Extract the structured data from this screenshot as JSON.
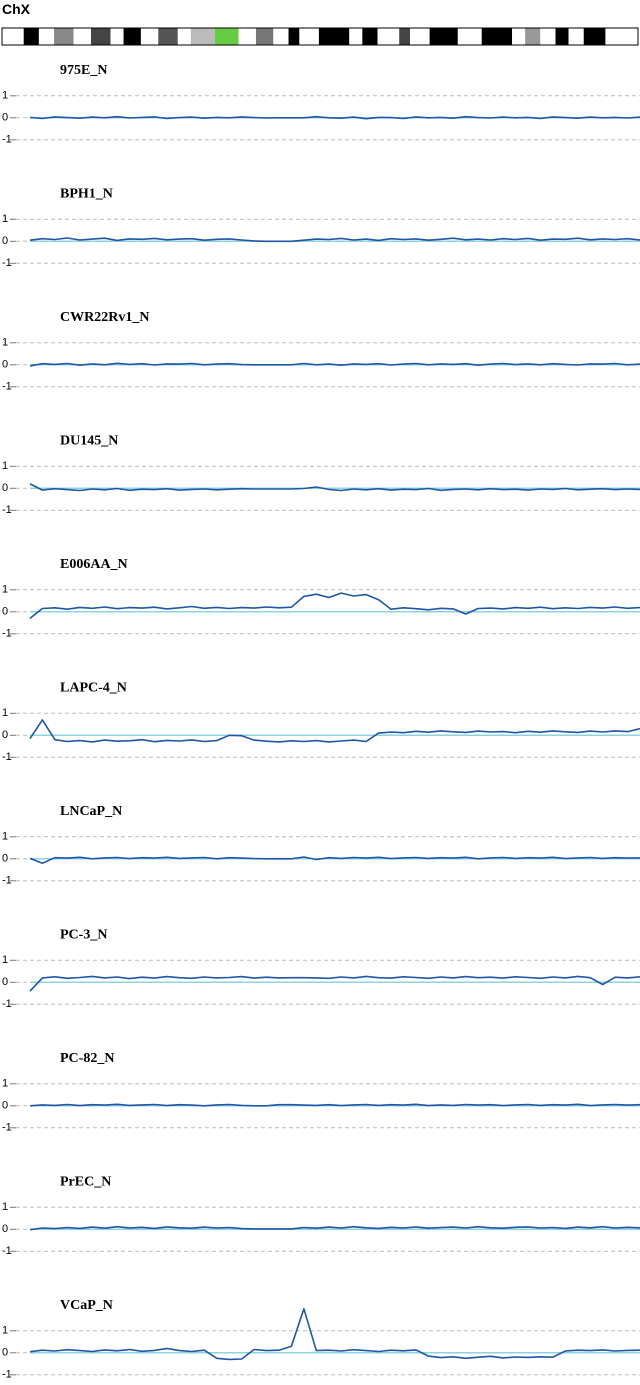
{
  "chromosome": "ChX",
  "chart_data": [
    {
      "type": "line",
      "title": "975E_N",
      "color": "#1f56a8",
      "ylim": [
        -1.1,
        1.1
      ],
      "yticks": [
        -1,
        0,
        1
      ],
      "grid": true,
      "values": [
        0.02,
        -0.03,
        0.04,
        0.01,
        -0.02,
        0.03,
        0.0,
        0.05,
        -0.01,
        0.02,
        0.04,
        -0.03,
        0.01,
        0.03,
        -0.02,
        0.02,
        0.0,
        0.04,
        0.01,
        -0.01,
        0.0,
        0.0,
        0.0,
        0.05,
        0.0,
        -0.02,
        0.03,
        -0.04,
        0.02,
        0.01,
        -0.03,
        0.04,
        0.0,
        0.02,
        -0.02,
        0.05,
        0.01,
        -0.01,
        0.03,
        0.0,
        0.02,
        -0.03,
        0.04,
        0.01,
        -0.02,
        0.03,
        0.0,
        0.02,
        -0.01,
        0.03
      ]
    },
    {
      "type": "line",
      "title": "BPH1_N",
      "color": "#1f56a8",
      "ylim": [
        -1.1,
        1.1
      ],
      "yticks": [
        -1,
        0,
        1
      ],
      "grid": true,
      "values": [
        0.05,
        0.12,
        0.08,
        0.15,
        0.06,
        0.1,
        0.14,
        0.04,
        0.11,
        0.09,
        0.13,
        0.07,
        0.1,
        0.12,
        0.05,
        0.09,
        0.11,
        0.06,
        0.02,
        0.0,
        0.0,
        0.0,
        0.05,
        0.1,
        0.08,
        0.13,
        0.06,
        0.1,
        0.04,
        0.12,
        0.08,
        0.11,
        0.05,
        0.09,
        0.14,
        0.07,
        0.1,
        0.06,
        0.12,
        0.08,
        0.13,
        0.05,
        0.1,
        0.09,
        0.14,
        0.07,
        0.11,
        0.08,
        0.12,
        0.06
      ]
    },
    {
      "type": "line",
      "title": "CWR22Rv1_N",
      "color": "#1f56a8",
      "ylim": [
        -1.1,
        1.1
      ],
      "yticks": [
        -1,
        0,
        1
      ],
      "grid": true,
      "values": [
        -0.05,
        0.05,
        0.02,
        0.06,
        -0.02,
        0.04,
        0.0,
        0.07,
        0.02,
        0.05,
        -0.01,
        0.04,
        0.03,
        0.06,
        0.0,
        0.03,
        0.05,
        0.01,
        0.0,
        0.0,
        0.0,
        0.0,
        0.06,
        0.0,
        0.03,
        -0.02,
        0.04,
        0.02,
        0.05,
        -0.01,
        0.03,
        0.06,
        0.0,
        0.04,
        0.02,
        0.05,
        -0.02,
        0.03,
        0.06,
        0.01,
        0.04,
        0.0,
        0.05,
        0.02,
        -0.01,
        0.04,
        0.03,
        0.06,
        0.0,
        0.03
      ]
    },
    {
      "type": "line",
      "title": "DU145_N",
      "color": "#1f56a8",
      "ylim": [
        -1.1,
        1.1
      ],
      "yticks": [
        -1,
        0,
        1
      ],
      "grid": true,
      "values": [
        0.2,
        -0.08,
        -0.02,
        -0.06,
        -0.1,
        -0.03,
        -0.07,
        -0.01,
        -0.09,
        -0.04,
        -0.06,
        -0.02,
        -0.08,
        -0.05,
        -0.03,
        -0.07,
        -0.04,
        -0.02,
        -0.03,
        -0.03,
        -0.03,
        -0.03,
        -0.01,
        0.06,
        -0.05,
        -0.1,
        -0.03,
        -0.07,
        -0.02,
        -0.08,
        -0.04,
        -0.06,
        -0.01,
        -0.09,
        -0.05,
        -0.03,
        -0.07,
        -0.02,
        -0.06,
        -0.04,
        -0.08,
        -0.03,
        -0.05,
        -0.01,
        -0.07,
        -0.04,
        -0.02,
        -0.06,
        -0.03,
        -0.05
      ]
    },
    {
      "type": "line",
      "title": "E006AA_N",
      "color": "#1f56a8",
      "ylim": [
        -1.1,
        1.1
      ],
      "yticks": [
        -1,
        0,
        1
      ],
      "grid": true,
      "values": [
        -0.3,
        0.15,
        0.18,
        0.12,
        0.2,
        0.16,
        0.22,
        0.14,
        0.19,
        0.17,
        0.21,
        0.13,
        0.18,
        0.24,
        0.16,
        0.2,
        0.15,
        0.19,
        0.17,
        0.22,
        0.18,
        0.21,
        0.7,
        0.8,
        0.65,
        0.85,
        0.72,
        0.78,
        0.55,
        0.12,
        0.18,
        0.14,
        0.09,
        0.16,
        0.13,
        -0.1,
        0.15,
        0.17,
        0.13,
        0.19,
        0.16,
        0.21,
        0.14,
        0.18,
        0.15,
        0.2,
        0.17,
        0.22,
        0.16,
        0.19
      ]
    },
    {
      "type": "line",
      "title": "LAPC-4_N",
      "color": "#1f56a8",
      "ylim": [
        -1.1,
        1.1
      ],
      "yticks": [
        -1,
        0,
        1
      ],
      "grid": true,
      "values": [
        -0.15,
        0.7,
        -0.2,
        -0.28,
        -0.24,
        -0.3,
        -0.22,
        -0.27,
        -0.25,
        -0.2,
        -0.29,
        -0.23,
        -0.26,
        -0.21,
        -0.28,
        -0.24,
        0.0,
        -0.02,
        -0.22,
        -0.27,
        -0.3,
        -0.25,
        -0.28,
        -0.24,
        -0.3,
        -0.26,
        -0.22,
        -0.28,
        0.1,
        0.15,
        0.12,
        0.18,
        0.14,
        0.2,
        0.16,
        0.13,
        0.19,
        0.15,
        0.17,
        0.12,
        0.18,
        0.14,
        0.2,
        0.16,
        0.13,
        0.19,
        0.15,
        0.2,
        0.17,
        0.3
      ]
    },
    {
      "type": "line",
      "title": "LNCaP_N",
      "color": "#1f56a8",
      "ylim": [
        -1.1,
        1.1
      ],
      "yticks": [
        -1,
        0,
        1
      ],
      "grid": true,
      "values": [
        0.02,
        -0.2,
        0.05,
        0.03,
        0.07,
        0.0,
        0.04,
        0.06,
        0.01,
        0.05,
        0.03,
        0.07,
        0.02,
        0.04,
        0.06,
        0.0,
        0.05,
        0.03,
        0.01,
        0.0,
        0.0,
        0.0,
        0.08,
        -0.03,
        0.05,
        0.02,
        0.06,
        0.03,
        0.07,
        0.01,
        0.04,
        0.06,
        0.02,
        0.05,
        0.03,
        0.07,
        0.0,
        0.04,
        0.06,
        0.02,
        0.05,
        0.03,
        0.07,
        0.01,
        0.04,
        0.06,
        0.02,
        0.05,
        0.03,
        0.04
      ]
    },
    {
      "type": "line",
      "title": "PC-3_N",
      "color": "#1f56a8",
      "ylim": [
        -1.1,
        1.1
      ],
      "yticks": [
        -1,
        0,
        1
      ],
      "grid": true,
      "values": [
        -0.4,
        0.2,
        0.25,
        0.18,
        0.22,
        0.27,
        0.2,
        0.24,
        0.17,
        0.23,
        0.19,
        0.26,
        0.21,
        0.18,
        0.24,
        0.2,
        0.22,
        0.26,
        0.19,
        0.23,
        0.2,
        0.21,
        0.21,
        0.2,
        0.18,
        0.24,
        0.2,
        0.27,
        0.21,
        0.19,
        0.25,
        0.22,
        0.18,
        0.24,
        0.2,
        0.26,
        0.21,
        0.23,
        0.19,
        0.25,
        0.22,
        0.18,
        0.24,
        0.2,
        0.27,
        0.21,
        -0.1,
        0.23,
        0.2,
        0.25
      ]
    },
    {
      "type": "line",
      "title": "PC-82_N",
      "color": "#1f56a8",
      "ylim": [
        -1.1,
        1.1
      ],
      "yticks": [
        -1,
        0,
        1
      ],
      "grid": true,
      "values": [
        0.0,
        0.04,
        0.02,
        0.06,
        0.01,
        0.05,
        0.03,
        0.07,
        0.02,
        0.04,
        0.06,
        0.01,
        0.05,
        0.03,
        0.0,
        0.04,
        0.06,
        0.02,
        0.0,
        0.0,
        0.05,
        0.05,
        0.03,
        0.02,
        0.05,
        0.01,
        0.04,
        0.06,
        0.02,
        0.05,
        0.03,
        0.07,
        0.01,
        0.04,
        0.02,
        0.06,
        0.03,
        0.05,
        0.01,
        0.04,
        0.06,
        0.02,
        0.05,
        0.03,
        0.07,
        0.01,
        0.04,
        0.06,
        0.03,
        0.05
      ]
    },
    {
      "type": "line",
      "title": "PrEC_N",
      "color": "#1f56a8",
      "ylim": [
        -1.1,
        1.1
      ],
      "yticks": [
        -1,
        0,
        1
      ],
      "grid": true,
      "values": [
        -0.02,
        0.06,
        0.03,
        0.08,
        0.04,
        0.1,
        0.05,
        0.12,
        0.06,
        0.09,
        0.04,
        0.11,
        0.07,
        0.05,
        0.1,
        0.06,
        0.08,
        0.03,
        0.02,
        0.02,
        0.02,
        0.02,
        0.08,
        0.05,
        0.1,
        0.06,
        0.12,
        0.07,
        0.04,
        0.09,
        0.06,
        0.11,
        0.05,
        0.08,
        0.1,
        0.06,
        0.12,
        0.07,
        0.05,
        0.09,
        0.11,
        0.06,
        0.08,
        0.04,
        0.1,
        0.07,
        0.12,
        0.06,
        0.09,
        0.07
      ]
    },
    {
      "type": "line",
      "title": "VCaP_N",
      "color": "#1f56a8",
      "ylim": [
        -1.1,
        2.1
      ],
      "yticks": [
        -1,
        0,
        1
      ],
      "grid": true,
      "values": [
        0.05,
        0.12,
        0.08,
        0.14,
        0.1,
        0.06,
        0.13,
        0.09,
        0.15,
        0.07,
        0.11,
        0.2,
        0.1,
        0.06,
        0.12,
        -0.25,
        -0.3,
        -0.28,
        0.15,
        0.1,
        0.12,
        0.3,
        2.0,
        0.1,
        0.12,
        0.08,
        0.14,
        0.1,
        0.06,
        0.12,
        0.09,
        0.13,
        -0.15,
        -0.22,
        -0.18,
        -0.25,
        -0.2,
        -0.16,
        -0.23,
        -0.19,
        -0.21,
        -0.18,
        -0.2,
        0.08,
        0.12,
        0.1,
        0.13,
        0.08,
        0.11,
        0.12
      ]
    }
  ]
}
